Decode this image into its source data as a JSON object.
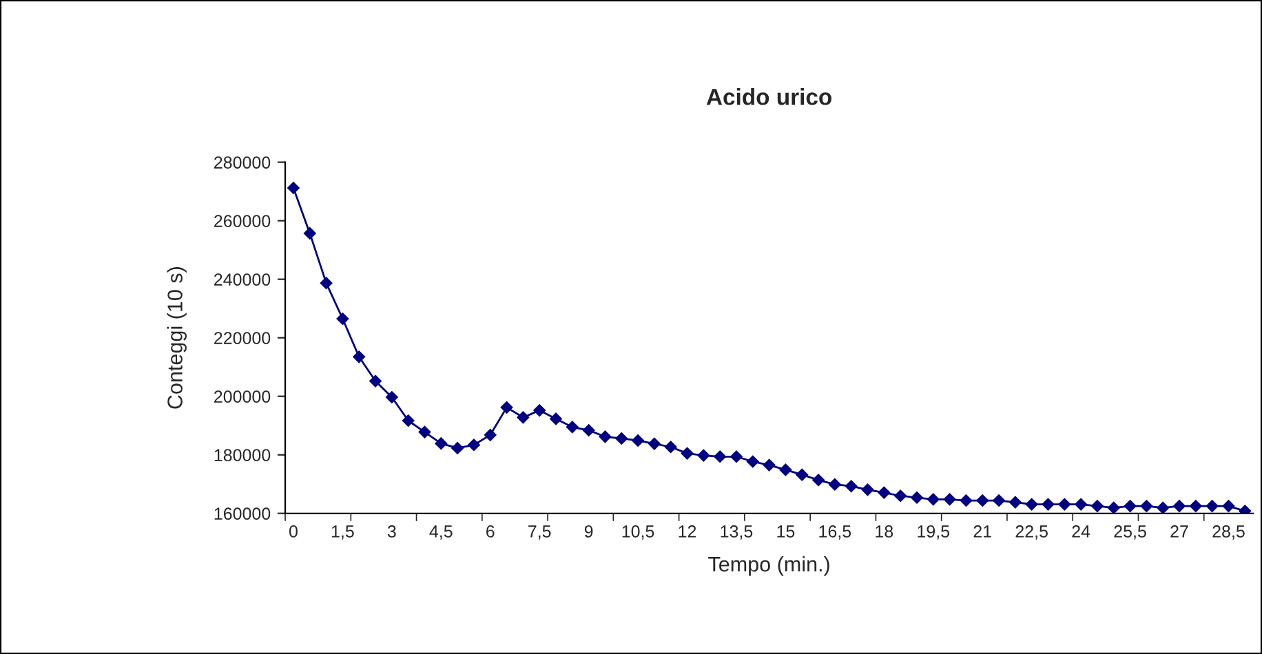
{
  "chart_data": {
    "type": "line",
    "title": "Acido urico",
    "xlabel": "Tempo (min.)",
    "ylabel": "Conteggi (10 s)",
    "categories": [
      "0",
      null,
      null,
      "1,5",
      null,
      null,
      "3",
      null,
      null,
      "4,5",
      null,
      null,
      "6",
      null,
      null,
      "7,5",
      null,
      null,
      "9",
      null,
      null,
      "10,5",
      null,
      null,
      "12",
      null,
      null,
      "13,5",
      null,
      null,
      "15",
      null,
      null,
      "16,5",
      null,
      null,
      "18",
      null,
      null,
      "19,5",
      null,
      null,
      "21",
      null,
      null,
      "22,5",
      null,
      null,
      "24",
      null,
      null,
      "25,5",
      null,
      null,
      "27",
      null,
      null,
      "28,5",
      null
    ],
    "series": [
      {
        "color": "#000080",
        "values": [
          271200,
          255700,
          238700,
          226500,
          213500,
          205200,
          199700,
          191700,
          187800,
          183900,
          182300,
          183400,
          186800,
          196200,
          192800,
          195200,
          192300,
          189500,
          188400,
          186200,
          185600,
          184900,
          183800,
          182700,
          180500,
          179800,
          179400,
          179400,
          177700,
          176500,
          174900,
          173200,
          171400,
          169900,
          169300,
          168100,
          167100,
          166000,
          165400,
          164800,
          164800,
          164400,
          164400,
          164400,
          163800,
          163100,
          163100,
          163100,
          163100,
          162500,
          161900,
          162500,
          162500,
          161900,
          162500,
          162500,
          162500,
          162500,
          160800
        ]
      }
    ],
    "ylim": [
      160000,
      280000
    ],
    "yticks": [
      160000,
      180000,
      200000,
      220000,
      240000,
      260000,
      280000
    ],
    "grid": false,
    "legend": false,
    "marker": "diamond",
    "line_style": "solid"
  }
}
